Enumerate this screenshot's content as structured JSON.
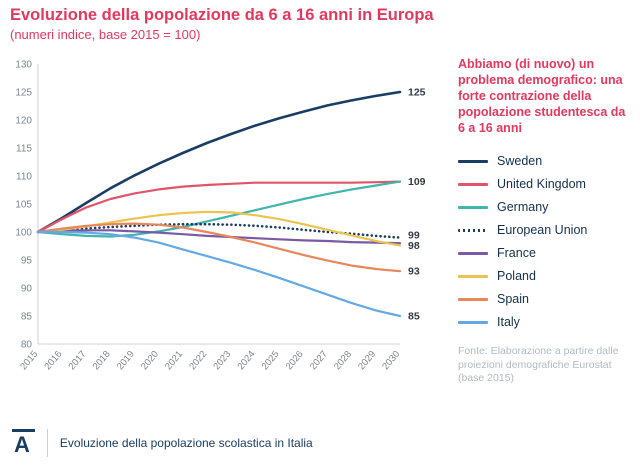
{
  "header": {
    "title": "Evoluzione della popolazione da 6 a 16 anni in Europa",
    "subtitle": "(numeri indice, base 2015 = 100)"
  },
  "callout": "Abbiamo (di nuovo) un problema demografico: una forte contrazione della popolazione studentesca da 6 a 16 anni",
  "source": "Fonte: Elaborazione a partire dalle proiezioni demografiche Eurostat (base 2015)",
  "footer": {
    "logo_letter": "A",
    "caption": "Evoluzione della popolazione scolastica in Italia"
  },
  "colors": {
    "accent_red": "#e5385e",
    "navy": "#1a3e63",
    "axis_text": "#7d868e",
    "end_label": "#333a44",
    "axis_line": "#ccd2d8",
    "source_text": "#b3bac1"
  },
  "chart_data": {
    "type": "line",
    "title": "Evoluzione della popolazione da 6 a 16 anni in Europa",
    "subtitle": "(numeri indice, base 2015 = 100)",
    "x": [
      2015,
      2016,
      2017,
      2018,
      2019,
      2020,
      2021,
      2022,
      2023,
      2024,
      2025,
      2026,
      2027,
      2028,
      2029,
      2030
    ],
    "ylim": [
      80,
      130
    ],
    "yticks": [
      80,
      85,
      90,
      95,
      100,
      105,
      110,
      115,
      120,
      125,
      130
    ],
    "grid": false,
    "legend_position": "right",
    "series": [
      {
        "name": "Sweden",
        "color": "#1a3e63",
        "dash": "solid",
        "width": 2.6,
        "end_label": "125",
        "label_dy": 0,
        "values": [
          100,
          102.5,
          105.2,
          107.8,
          110.1,
          112.2,
          114.1,
          115.9,
          117.5,
          119.0,
          120.3,
          121.5,
          122.6,
          123.5,
          124.3,
          125
        ]
      },
      {
        "name": "United Kingdom",
        "color": "#e0556a",
        "dash": "solid",
        "width": 2.2,
        "end_label": "109",
        "label_dy": 0,
        "values": [
          100,
          102.3,
          104.4,
          105.9,
          106.9,
          107.6,
          108.1,
          108.4,
          108.6,
          108.8,
          108.8,
          108.8,
          108.8,
          108.8,
          108.9,
          109
        ]
      },
      {
        "name": "Germany",
        "color": "#3fb5ab",
        "dash": "solid",
        "width": 2.2,
        "end_label": "",
        "label_dy": 0,
        "values": [
          100,
          99.6,
          99.3,
          99.2,
          99.5,
          100.1,
          100.9,
          101.9,
          102.9,
          103.9,
          104.9,
          105.9,
          106.8,
          107.6,
          108.3,
          109
        ]
      },
      {
        "name": "European Union",
        "color": "#1a3e63",
        "dash": "dotted",
        "width": 2.6,
        "end_label": "99",
        "label_dy": -2.5,
        "values": [
          100,
          100.3,
          100.6,
          100.9,
          101.1,
          101.3,
          101.4,
          101.4,
          101.3,
          101.1,
          100.8,
          100.4,
          100,
          99.7,
          99.3,
          99
        ]
      },
      {
        "name": "France",
        "color": "#7a5aa5",
        "dash": "solid",
        "width": 2.2,
        "end_label": "98",
        "label_dy": 2.5,
        "values": [
          100,
          100.2,
          100.3,
          100.3,
          100.1,
          99.9,
          99.6,
          99.3,
          99.1,
          98.9,
          98.7,
          98.5,
          98.4,
          98.2,
          98.1,
          98
        ]
      },
      {
        "name": "Poland",
        "color": "#ecc44d",
        "dash": "solid",
        "width": 2.2,
        "end_label": "",
        "label_dy": 0,
        "values": [
          100,
          100.4,
          101.0,
          101.7,
          102.4,
          103.0,
          103.4,
          103.6,
          103.5,
          103.0,
          102.3,
          101.4,
          100.4,
          99.4,
          98.4,
          97.6
        ]
      },
      {
        "name": "Spain",
        "color": "#e8875c",
        "dash": "solid",
        "width": 2.2,
        "end_label": "93",
        "label_dy": 0,
        "values": [
          100,
          100.6,
          101.1,
          101.4,
          101.5,
          101.3,
          100.8,
          100.0,
          99.1,
          98.1,
          97.0,
          95.9,
          94.9,
          94.0,
          93.4,
          93
        ]
      },
      {
        "name": "Italy",
        "color": "#64a9e6",
        "dash": "solid",
        "width": 2.2,
        "end_label": "85",
        "label_dy": 0,
        "values": [
          100,
          100.0,
          99.9,
          99.6,
          99.0,
          98.1,
          96.9,
          95.7,
          94.5,
          93.2,
          91.8,
          90.3,
          88.8,
          87.3,
          86.0,
          85
        ]
      }
    ]
  }
}
